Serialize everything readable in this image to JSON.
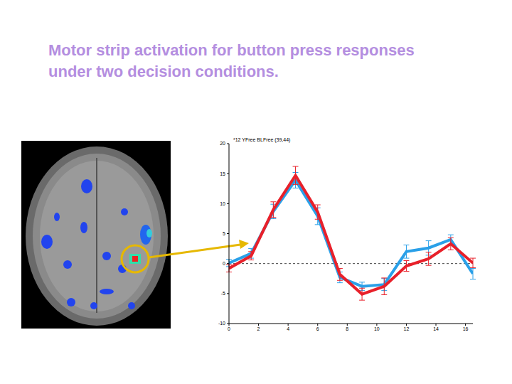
{
  "heading": "Motor strip activation for button press responses under two decision conditions.",
  "chart_data": {
    "type": "line",
    "title": "*12 YFree BLFree (39,44)",
    "x": [
      0,
      1.5,
      3,
      4.5,
      6,
      7.5,
      9,
      10.5,
      12,
      13.5,
      15,
      16.5
    ],
    "series": [
      {
        "color": "#2aa0e8",
        "values": [
          0.1,
          1.7,
          8.7,
          13.9,
          7.9,
          -2.3,
          -3.8,
          -3.5,
          2.0,
          2.6,
          4.0,
          -1.7
        ],
        "errors": [
          0.6,
          0.8,
          1.2,
          1.3,
          1.4,
          0.9,
          0.7,
          1.0,
          1.1,
          1.2,
          0.8,
          0.9
        ]
      },
      {
        "color": "#e8202a",
        "values": [
          -0.8,
          1.3,
          9.0,
          14.7,
          8.6,
          -1.8,
          -5.1,
          -3.8,
          -0.4,
          0.8,
          3.3,
          0.1
        ],
        "errors": [
          0.6,
          0.7,
          1.3,
          1.5,
          1.2,
          1.0,
          1.0,
          1.4,
          0.9,
          1.1,
          1.0,
          0.8
        ]
      }
    ],
    "xlim": [
      0,
      16.5
    ],
    "xticks": [
      0,
      2,
      4,
      6,
      8,
      10,
      12,
      14,
      16
    ],
    "ylim": [
      -10,
      20
    ],
    "yticks": [
      -10,
      -5,
      0,
      5,
      10,
      15,
      20
    ],
    "baseline": 0,
    "grid": false
  }
}
